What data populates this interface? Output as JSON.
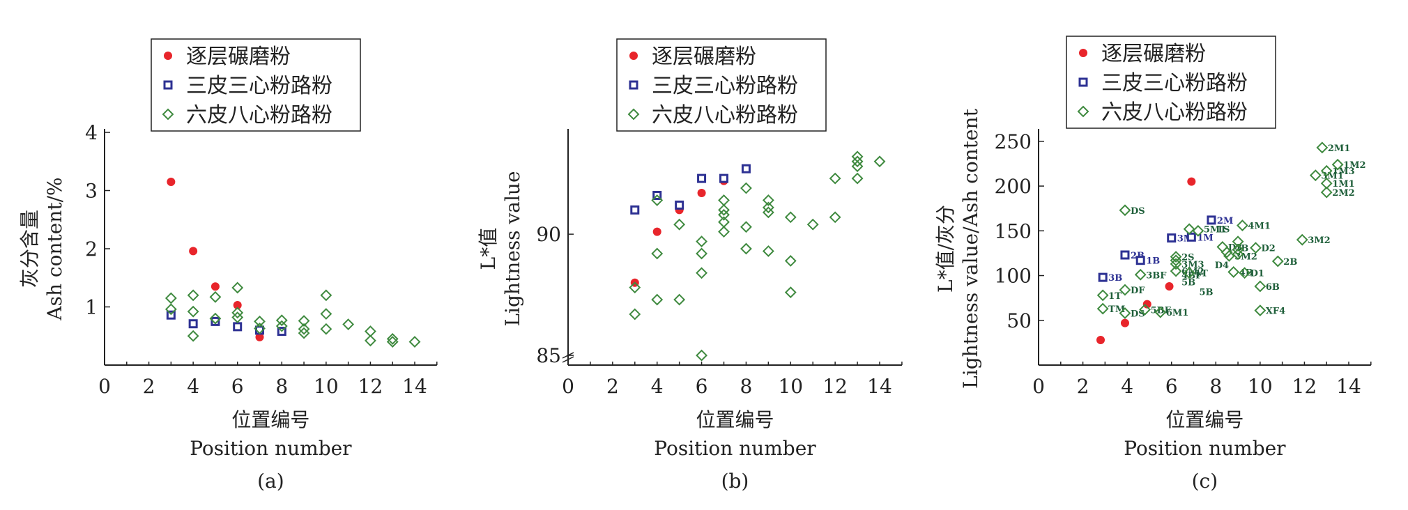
{
  "legend_labels": [
    "逐层碾磨粉",
    "三皮三心粉路粉",
    "六皮八心粉路粉"
  ],
  "colors": {
    "red": "#e8252b",
    "blue": "#2d3193",
    "green": "#3f8a3f"
  },
  "chart_data": [
    {
      "panel": "(a)",
      "type": "scatter",
      "xlabel": [
        "位置编号",
        "Position number"
      ],
      "ylabel": [
        "灰分含量",
        "Ash content/%"
      ],
      "xlim": [
        0,
        15
      ],
      "ylim": [
        0,
        4
      ],
      "xticks": [
        0,
        2,
        4,
        6,
        8,
        10,
        12,
        14
      ],
      "yticks": [
        1,
        2,
        3,
        4
      ],
      "grid": false,
      "legend": "top",
      "series": [
        {
          "name": "逐层碾磨粉",
          "marker": "circle",
          "points": [
            [
              3,
              3.15
            ],
            [
              4,
              1.96
            ],
            [
              5,
              1.35
            ],
            [
              6,
              1.03
            ],
            [
              7,
              0.48
            ]
          ]
        },
        {
          "name": "三皮三心粉路粉",
          "marker": "square",
          "points": [
            [
              3,
              0.86
            ],
            [
              4,
              0.71
            ],
            [
              5,
              0.75
            ],
            [
              6,
              0.66
            ],
            [
              7,
              0.6
            ],
            [
              8,
              0.58
            ]
          ]
        },
        {
          "name": "六皮八心粉路粉",
          "marker": "diamond",
          "points": [
            [
              3,
              1.15
            ],
            [
              3,
              0.96
            ],
            [
              4,
              1.2
            ],
            [
              4,
              0.92
            ],
            [
              4,
              0.5
            ],
            [
              5,
              1.17
            ],
            [
              5,
              0.8
            ],
            [
              6,
              1.33
            ],
            [
              6,
              0.9
            ],
            [
              6,
              0.82
            ],
            [
              7,
              0.75
            ],
            [
              7,
              0.63
            ],
            [
              8,
              0.77
            ],
            [
              8,
              0.67
            ],
            [
              9,
              0.76
            ],
            [
              9,
              0.62
            ],
            [
              9,
              0.55
            ],
            [
              10,
              1.2
            ],
            [
              10,
              0.88
            ],
            [
              10,
              0.62
            ],
            [
              11,
              0.7
            ],
            [
              12,
              0.58
            ],
            [
              12,
              0.42
            ],
            [
              13,
              0.45
            ],
            [
              13,
              0.4
            ],
            [
              14,
              0.4
            ]
          ]
        }
      ]
    },
    {
      "panel": "(b)",
      "type": "scatter",
      "xlabel": [
        "位置编号",
        "Position number"
      ],
      "ylabel": [
        "L*值",
        "Lightness value"
      ],
      "xlim": [
        0,
        15
      ],
      "ylim": [
        84.6,
        94.2
      ],
      "axis_break": true,
      "xticks": [
        0,
        2,
        4,
        6,
        8,
        10,
        12,
        14
      ],
      "yticks": [
        85,
        90
      ],
      "grid": false,
      "legend": "top",
      "series": [
        {
          "name": "逐层碾磨粉",
          "marker": "circle",
          "points": [
            [
              3,
              88
            ],
            [
              4,
              90.1
            ],
            [
              5,
              91
            ],
            [
              6,
              91.7
            ],
            [
              7,
              92.2
            ]
          ]
        },
        {
          "name": "三皮三心粉路粉",
          "marker": "square",
          "points": [
            [
              3,
              91
            ],
            [
              4,
              91.6
            ],
            [
              5,
              91.2
            ],
            [
              6,
              92.3
            ],
            [
              7,
              92.3
            ],
            [
              8,
              92.7
            ]
          ]
        },
        {
          "name": "六皮八心粉路粉",
          "marker": "diamond",
          "points": [
            [
              3,
              87.8
            ],
            [
              3,
              86.7
            ],
            [
              4,
              91.4
            ],
            [
              4,
              89.2
            ],
            [
              4,
              87.3
            ],
            [
              5,
              90.4
            ],
            [
              5,
              87.3
            ],
            [
              6,
              89.7
            ],
            [
              6,
              89.2
            ],
            [
              6,
              88.4
            ],
            [
              6,
              85
            ],
            [
              7,
              91.4
            ],
            [
              7,
              91
            ],
            [
              7,
              90.8
            ],
            [
              7,
              90.5
            ],
            [
              7,
              90.1
            ],
            [
              8,
              91.9
            ],
            [
              8,
              90.3
            ],
            [
              8,
              89.4
            ],
            [
              9,
              91.4
            ],
            [
              9,
              91.1
            ],
            [
              9,
              90.9
            ],
            [
              9,
              89.3
            ],
            [
              10,
              90.7
            ],
            [
              10,
              88.9
            ],
            [
              10,
              87.6
            ],
            [
              11,
              90.4
            ],
            [
              12,
              92.3
            ],
            [
              12,
              90.7
            ],
            [
              13,
              93.2
            ],
            [
              13,
              93
            ],
            [
              13,
              92.8
            ],
            [
              13,
              92.3
            ],
            [
              14,
              93
            ]
          ]
        }
      ]
    },
    {
      "panel": "(c)",
      "type": "scatter",
      "xlabel": [
        "位置编号",
        "Position number"
      ],
      "ylabel": [
        "L*值/灰分",
        "Lightness value/Ash content"
      ],
      "xlim": [
        0,
        15
      ],
      "ylim": [
        0,
        260
      ],
      "xticks": [
        0,
        2,
        4,
        6,
        8,
        10,
        12,
        14
      ],
      "yticks": [
        50,
        100,
        150,
        200,
        250
      ],
      "grid": false,
      "legend": "top",
      "series": [
        {
          "name": "逐层碾磨粉",
          "marker": "circle",
          "points": [
            [
              2.8,
              28
            ],
            [
              3.9,
              47
            ],
            [
              4.9,
              68
            ],
            [
              5.9,
              88
            ],
            [
              6.9,
              205
            ]
          ]
        },
        {
          "name": "三皮三心粉路粉",
          "marker": "square",
          "points": [
            [
              2.9,
              98
            ],
            [
              3.9,
              123
            ],
            [
              4.6,
              117
            ],
            [
              6.0,
              142
            ],
            [
              6.9,
              143
            ],
            [
              7.8,
              162
            ]
          ]
        },
        {
          "name": "六皮八心粉路粉",
          "marker": "diamond",
          "points": [
            [
              2.9,
              78
            ],
            [
              2.9,
              63
            ],
            [
              3.9,
              173
            ],
            [
              3.9,
              84
            ],
            [
              3.9,
              58
            ],
            [
              4.6,
              101
            ],
            [
              4.8,
              62
            ],
            [
              5.5,
              59
            ],
            [
              6.2,
              121
            ],
            [
              6.2,
              117
            ],
            [
              6.2,
              113
            ],
            [
              6.2,
              105
            ],
            [
              6.8,
              103
            ],
            [
              6.8,
              152
            ],
            [
              7.2,
              150
            ],
            [
              8.3,
              132
            ],
            [
              8.5,
              126
            ],
            [
              8.6,
              122
            ],
            [
              8.8,
              104
            ],
            [
              9.0,
              138
            ],
            [
              9.0,
              129
            ],
            [
              9.0,
              124
            ],
            [
              9.2,
              156
            ],
            [
              9.3,
              103
            ],
            [
              9.8,
              131
            ],
            [
              10.0,
              88
            ],
            [
              10.0,
              61
            ],
            [
              10.8,
              116
            ],
            [
              11.9,
              140
            ],
            [
              12.5,
              212
            ],
            [
              12.8,
              243
            ],
            [
              13.0,
              217
            ],
            [
              13.0,
              203
            ],
            [
              13.0,
              193
            ],
            [
              13.5,
              224
            ]
          ]
        }
      ],
      "point_labels": [
        {
          "text": "3B",
          "x": 2.9,
          "y": 98
        },
        {
          "text": "2B",
          "x": 3.9,
          "y": 123
        },
        {
          "text": "1B",
          "x": 4.6,
          "y": 117
        },
        {
          "text": "3M",
          "x": 6.0,
          "y": 142
        },
        {
          "text": "1M",
          "x": 6.9,
          "y": 143
        },
        {
          "text": "2M",
          "x": 7.8,
          "y": 162
        },
        {
          "text": "DS",
          "x": 3.9,
          "y": 173
        },
        {
          "text": "1T",
          "x": 2.9,
          "y": 78
        },
        {
          "text": "TM",
          "x": 2.9,
          "y": 63
        },
        {
          "text": "DF",
          "x": 3.9,
          "y": 84
        },
        {
          "text": "DS",
          "x": 3.9,
          "y": 58
        },
        {
          "text": "3BF",
          "x": 4.6,
          "y": 101
        },
        {
          "text": "5BF",
          "x": 4.8,
          "y": 62
        },
        {
          "text": "6M1",
          "x": 5.5,
          "y": 59
        },
        {
          "text": "2S",
          "x": 6.2,
          "y": 121
        },
        {
          "text": "3M3",
          "x": 6.2,
          "y": 113
        },
        {
          "text": "6M2",
          "x": 6.2,
          "y": 105
        },
        {
          "text": "4BF",
          "x": 6.2,
          "y": 101
        },
        {
          "text": "5B",
          "x": 6.2,
          "y": 93
        },
        {
          "text": "1T",
          "x": 6.8,
          "y": 103
        },
        {
          "text": "5M1",
          "x": 7.2,
          "y": 152
        },
        {
          "text": "1S",
          "x": 7.8,
          "y": 152
        },
        {
          "text": "D3",
          "x": 8.3,
          "y": 132
        },
        {
          "text": "4B",
          "x": 8.6,
          "y": 131
        },
        {
          "text": "D2",
          "x": 9.8,
          "y": 131
        },
        {
          "text": "3M2",
          "x": 8.6,
          "y": 122
        },
        {
          "text": "D4",
          "x": 7.7,
          "y": 112
        },
        {
          "text": "4M1",
          "x": 9.2,
          "y": 156
        },
        {
          "text": "4B",
          "x": 8.8,
          "y": 104
        },
        {
          "text": "D1",
          "x": 9.3,
          "y": 103
        },
        {
          "text": "5B",
          "x": 7.0,
          "y": 82
        },
        {
          "text": "6B",
          "x": 10.0,
          "y": 88
        },
        {
          "text": "XF4",
          "x": 10.0,
          "y": 61
        },
        {
          "text": "2B",
          "x": 10.8,
          "y": 116
        },
        {
          "text": "3M2",
          "x": 11.9,
          "y": 140
        },
        {
          "text": "3M1",
          "x": 12.5,
          "y": 212
        },
        {
          "text": "2M1",
          "x": 12.8,
          "y": 243
        },
        {
          "text": "1M3",
          "x": 13.0,
          "y": 217
        },
        {
          "text": "1M2",
          "x": 13.5,
          "y": 224
        },
        {
          "text": "1M1",
          "x": 13.0,
          "y": 203
        },
        {
          "text": "2M2",
          "x": 13.0,
          "y": 193
        }
      ]
    }
  ]
}
